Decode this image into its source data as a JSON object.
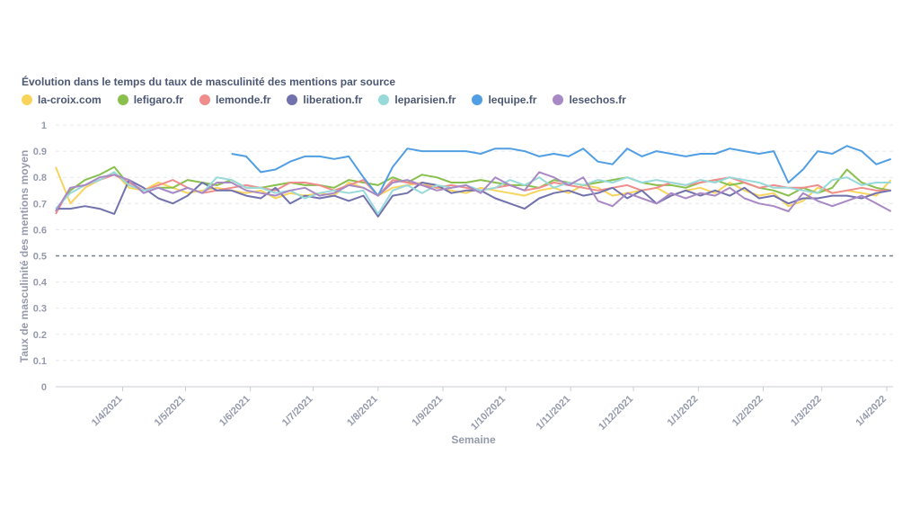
{
  "chart_data": {
    "type": "line",
    "title": "Évolution dans le temps du taux de masculinité des mentions par source",
    "xlabel": "Semaine",
    "ylabel": "Taux de masculinité des mentions moyen",
    "ylim": [
      0,
      1
    ],
    "yticks": [
      "0",
      "0.1",
      "0.2",
      "0.3",
      "0.4",
      "0.5",
      "0.6",
      "0.7",
      "0.8",
      "0.9",
      "1"
    ],
    "xlim": [
      "2021-02-28",
      "2022-04-04"
    ],
    "xticks": [
      {
        "date": "2021-04-01",
        "label": "1/4/2021"
      },
      {
        "date": "2021-05-01",
        "label": "1/5/2021"
      },
      {
        "date": "2021-06-01",
        "label": "1/6/2021"
      },
      {
        "date": "2021-07-01",
        "label": "1/7/2021"
      },
      {
        "date": "2021-08-01",
        "label": "1/8/2021"
      },
      {
        "date": "2021-09-01",
        "label": "1/9/2021"
      },
      {
        "date": "2021-10-01",
        "label": "1/10/2021"
      },
      {
        "date": "2021-11-01",
        "label": "1/11/2021"
      },
      {
        "date": "2021-12-01",
        "label": "1/12/2021"
      },
      {
        "date": "2022-01-01",
        "label": "1/1/2022"
      },
      {
        "date": "2022-02-01",
        "label": "1/2/2022"
      },
      {
        "date": "2022-03-01",
        "label": "1/3/2022"
      },
      {
        "date": "2022-04-01",
        "label": "1/4/2022"
      }
    ],
    "reference_line": {
      "y": 0.5,
      "style": "dashed"
    },
    "grid": "horizontal dashed",
    "legend_position": "top-left",
    "dates": [
      "2021-02-28",
      "2021-03-07",
      "2021-03-14",
      "2021-03-21",
      "2021-03-28",
      "2021-04-04",
      "2021-04-11",
      "2021-04-18",
      "2021-04-25",
      "2021-05-02",
      "2021-05-09",
      "2021-05-16",
      "2021-05-23",
      "2021-05-30",
      "2021-06-06",
      "2021-06-13",
      "2021-06-20",
      "2021-06-27",
      "2021-07-04",
      "2021-07-11",
      "2021-07-18",
      "2021-07-25",
      "2021-08-01",
      "2021-08-08",
      "2021-08-15",
      "2021-08-22",
      "2021-08-29",
      "2021-09-05",
      "2021-09-12",
      "2021-09-19",
      "2021-09-26",
      "2021-10-03",
      "2021-10-10",
      "2021-10-17",
      "2021-10-24",
      "2021-10-31",
      "2021-11-07",
      "2021-11-14",
      "2021-11-21",
      "2021-11-28",
      "2021-12-05",
      "2021-12-12",
      "2021-12-19",
      "2021-12-26",
      "2022-01-02",
      "2022-01-09",
      "2022-01-16",
      "2022-01-23",
      "2022-01-30",
      "2022-02-06",
      "2022-02-13",
      "2022-02-20",
      "2022-02-27",
      "2022-03-06",
      "2022-03-13",
      "2022-03-20",
      "2022-03-27",
      "2022-04-03"
    ],
    "series": [
      {
        "name": "la-croix.com",
        "color": "#f9d45c",
        "values": [
          0.84,
          0.7,
          0.76,
          0.79,
          0.82,
          0.76,
          0.75,
          0.78,
          0.76,
          0.74,
          0.75,
          0.76,
          0.75,
          0.74,
          0.75,
          0.72,
          0.74,
          0.73,
          0.74,
          0.73,
          0.78,
          0.76,
          0.73,
          0.76,
          0.77,
          0.78,
          0.76,
          0.75,
          0.74,
          0.76,
          0.75,
          0.74,
          0.73,
          0.75,
          0.76,
          0.74,
          0.77,
          0.76,
          0.73,
          0.74,
          0.75,
          0.76,
          0.73,
          0.75,
          0.76,
          0.74,
          0.78,
          0.75,
          0.73,
          0.74,
          0.69,
          0.71,
          0.76,
          0.74,
          0.75,
          0.74,
          0.73,
          0.79
        ]
      },
      {
        "name": "lefigaro.fr",
        "color": "#88bf4d",
        "values": [
          0.67,
          0.75,
          0.79,
          0.81,
          0.84,
          0.77,
          0.75,
          0.76,
          0.76,
          0.79,
          0.78,
          0.77,
          0.79,
          0.76,
          0.76,
          0.77,
          0.78,
          0.77,
          0.77,
          0.76,
          0.79,
          0.78,
          0.77,
          0.8,
          0.78,
          0.81,
          0.8,
          0.78,
          0.78,
          0.79,
          0.78,
          0.77,
          0.77,
          0.76,
          0.79,
          0.78,
          0.77,
          0.78,
          0.79,
          0.8,
          0.78,
          0.77,
          0.77,
          0.76,
          0.78,
          0.79,
          0.77,
          0.78,
          0.76,
          0.75,
          0.73,
          0.76,
          0.74,
          0.76,
          0.83,
          0.78,
          0.76,
          0.75
        ]
      },
      {
        "name": "lemonde.fr",
        "color": "#ef8c8c",
        "values": [
          0.66,
          0.76,
          0.77,
          0.79,
          0.81,
          0.78,
          0.75,
          0.77,
          0.79,
          0.76,
          0.74,
          0.75,
          0.76,
          0.77,
          0.76,
          0.75,
          0.78,
          0.78,
          0.77,
          0.75,
          0.77,
          0.79,
          0.73,
          0.79,
          0.78,
          0.77,
          0.76,
          0.77,
          0.76,
          0.75,
          0.76,
          0.77,
          0.75,
          0.76,
          0.78,
          0.77,
          0.76,
          0.75,
          0.76,
          0.77,
          0.75,
          0.76,
          0.78,
          0.77,
          0.78,
          0.79,
          0.8,
          0.78,
          0.76,
          0.77,
          0.76,
          0.76,
          0.77,
          0.74,
          0.75,
          0.76,
          0.75,
          0.75
        ]
      },
      {
        "name": "liberation.fr",
        "color": "#7172ad",
        "values": [
          0.68,
          0.68,
          0.69,
          0.68,
          0.66,
          0.79,
          0.76,
          0.72,
          0.7,
          0.73,
          0.78,
          0.75,
          0.75,
          0.73,
          0.72,
          0.76,
          0.7,
          0.73,
          0.72,
          0.73,
          0.71,
          0.73,
          0.65,
          0.73,
          0.74,
          0.78,
          0.77,
          0.74,
          0.75,
          0.75,
          0.72,
          0.7,
          0.68,
          0.72,
          0.74,
          0.75,
          0.73,
          0.74,
          0.76,
          0.72,
          0.75,
          0.7,
          0.73,
          0.75,
          0.73,
          0.75,
          0.73,
          0.76,
          0.72,
          0.73,
          0.7,
          0.72,
          0.72,
          0.73,
          0.73,
          0.72,
          0.74,
          0.75
        ]
      },
      {
        "name": "leparisien.fr",
        "color": "#98d9d9",
        "values": [
          0.68,
          0.74,
          0.77,
          0.79,
          0.82,
          0.77,
          0.75,
          0.76,
          0.74,
          0.76,
          0.74,
          0.8,
          0.79,
          0.76,
          0.76,
          0.74,
          0.75,
          0.72,
          0.74,
          0.75,
          0.74,
          0.75,
          0.66,
          0.75,
          0.77,
          0.74,
          0.77,
          0.76,
          0.77,
          0.75,
          0.76,
          0.79,
          0.77,
          0.8,
          0.76,
          0.78,
          0.77,
          0.79,
          0.78,
          0.8,
          0.78,
          0.79,
          0.78,
          0.77,
          0.79,
          0.78,
          0.8,
          0.79,
          0.78,
          0.76,
          0.76,
          0.75,
          0.74,
          0.79,
          0.8,
          0.77,
          0.78,
          0.78
        ]
      },
      {
        "name": "lequipe.fr",
        "color": "#509ee3",
        "values": [
          null,
          null,
          null,
          null,
          null,
          null,
          null,
          null,
          null,
          null,
          null,
          null,
          0.89,
          0.88,
          0.82,
          0.83,
          0.86,
          0.88,
          0.88,
          0.87,
          0.88,
          0.8,
          0.73,
          0.84,
          0.91,
          0.9,
          0.9,
          0.9,
          0.9,
          0.89,
          0.91,
          0.91,
          0.9,
          0.88,
          0.89,
          0.88,
          0.91,
          0.86,
          0.85,
          0.91,
          0.88,
          0.9,
          0.89,
          0.88,
          0.89,
          0.89,
          0.91,
          0.9,
          0.89,
          0.9,
          0.78,
          0.83,
          0.9,
          0.89,
          0.92,
          0.9,
          0.85,
          0.87
        ]
      },
      {
        "name": "lesechos.fr",
        "color": "#a989c5",
        "values": [
          0.67,
          0.76,
          0.77,
          0.8,
          0.81,
          0.79,
          0.74,
          0.76,
          0.74,
          0.76,
          0.74,
          0.78,
          0.78,
          0.75,
          0.74,
          0.73,
          0.75,
          0.76,
          0.73,
          0.74,
          0.77,
          0.76,
          0.73,
          0.78,
          0.79,
          0.77,
          0.75,
          0.76,
          0.77,
          0.74,
          0.8,
          0.77,
          0.75,
          0.82,
          0.8,
          0.77,
          0.8,
          0.71,
          0.69,
          0.74,
          0.72,
          0.7,
          0.74,
          0.72,
          0.74,
          0.73,
          0.76,
          0.72,
          0.7,
          0.69,
          0.67,
          0.74,
          0.71,
          0.69,
          0.71,
          0.73,
          0.7,
          0.67
        ]
      }
    ]
  }
}
